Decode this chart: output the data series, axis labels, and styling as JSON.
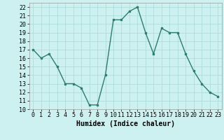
{
  "x": [
    0,
    1,
    2,
    3,
    4,
    5,
    6,
    7,
    8,
    9,
    10,
    11,
    12,
    13,
    14,
    15,
    16,
    17,
    18,
    19,
    20,
    21,
    22,
    23
  ],
  "y": [
    17,
    16,
    16.5,
    15,
    13,
    13,
    12.5,
    10.5,
    10.5,
    14,
    20.5,
    20.5,
    21.5,
    22,
    19,
    16.5,
    19.5,
    19,
    19,
    16.5,
    14.5,
    13,
    12,
    11.5
  ],
  "line_color": "#2e7d6e",
  "marker_color": "#2e7d6e",
  "bg_color": "#cdf0f0",
  "grid_color": "#aad8d8",
  "xlabel": "Humidex (Indice chaleur)",
  "xlim": [
    -0.5,
    23.5
  ],
  "ylim": [
    10,
    22.5
  ],
  "yticks": [
    10,
    11,
    12,
    13,
    14,
    15,
    16,
    17,
    18,
    19,
    20,
    21,
    22
  ],
  "xticks": [
    0,
    1,
    2,
    3,
    4,
    5,
    6,
    7,
    8,
    9,
    10,
    11,
    12,
    13,
    14,
    15,
    16,
    17,
    18,
    19,
    20,
    21,
    22,
    23
  ],
  "xlabel_fontsize": 7,
  "tick_fontsize": 6,
  "linewidth": 1.0,
  "markersize": 2.0
}
